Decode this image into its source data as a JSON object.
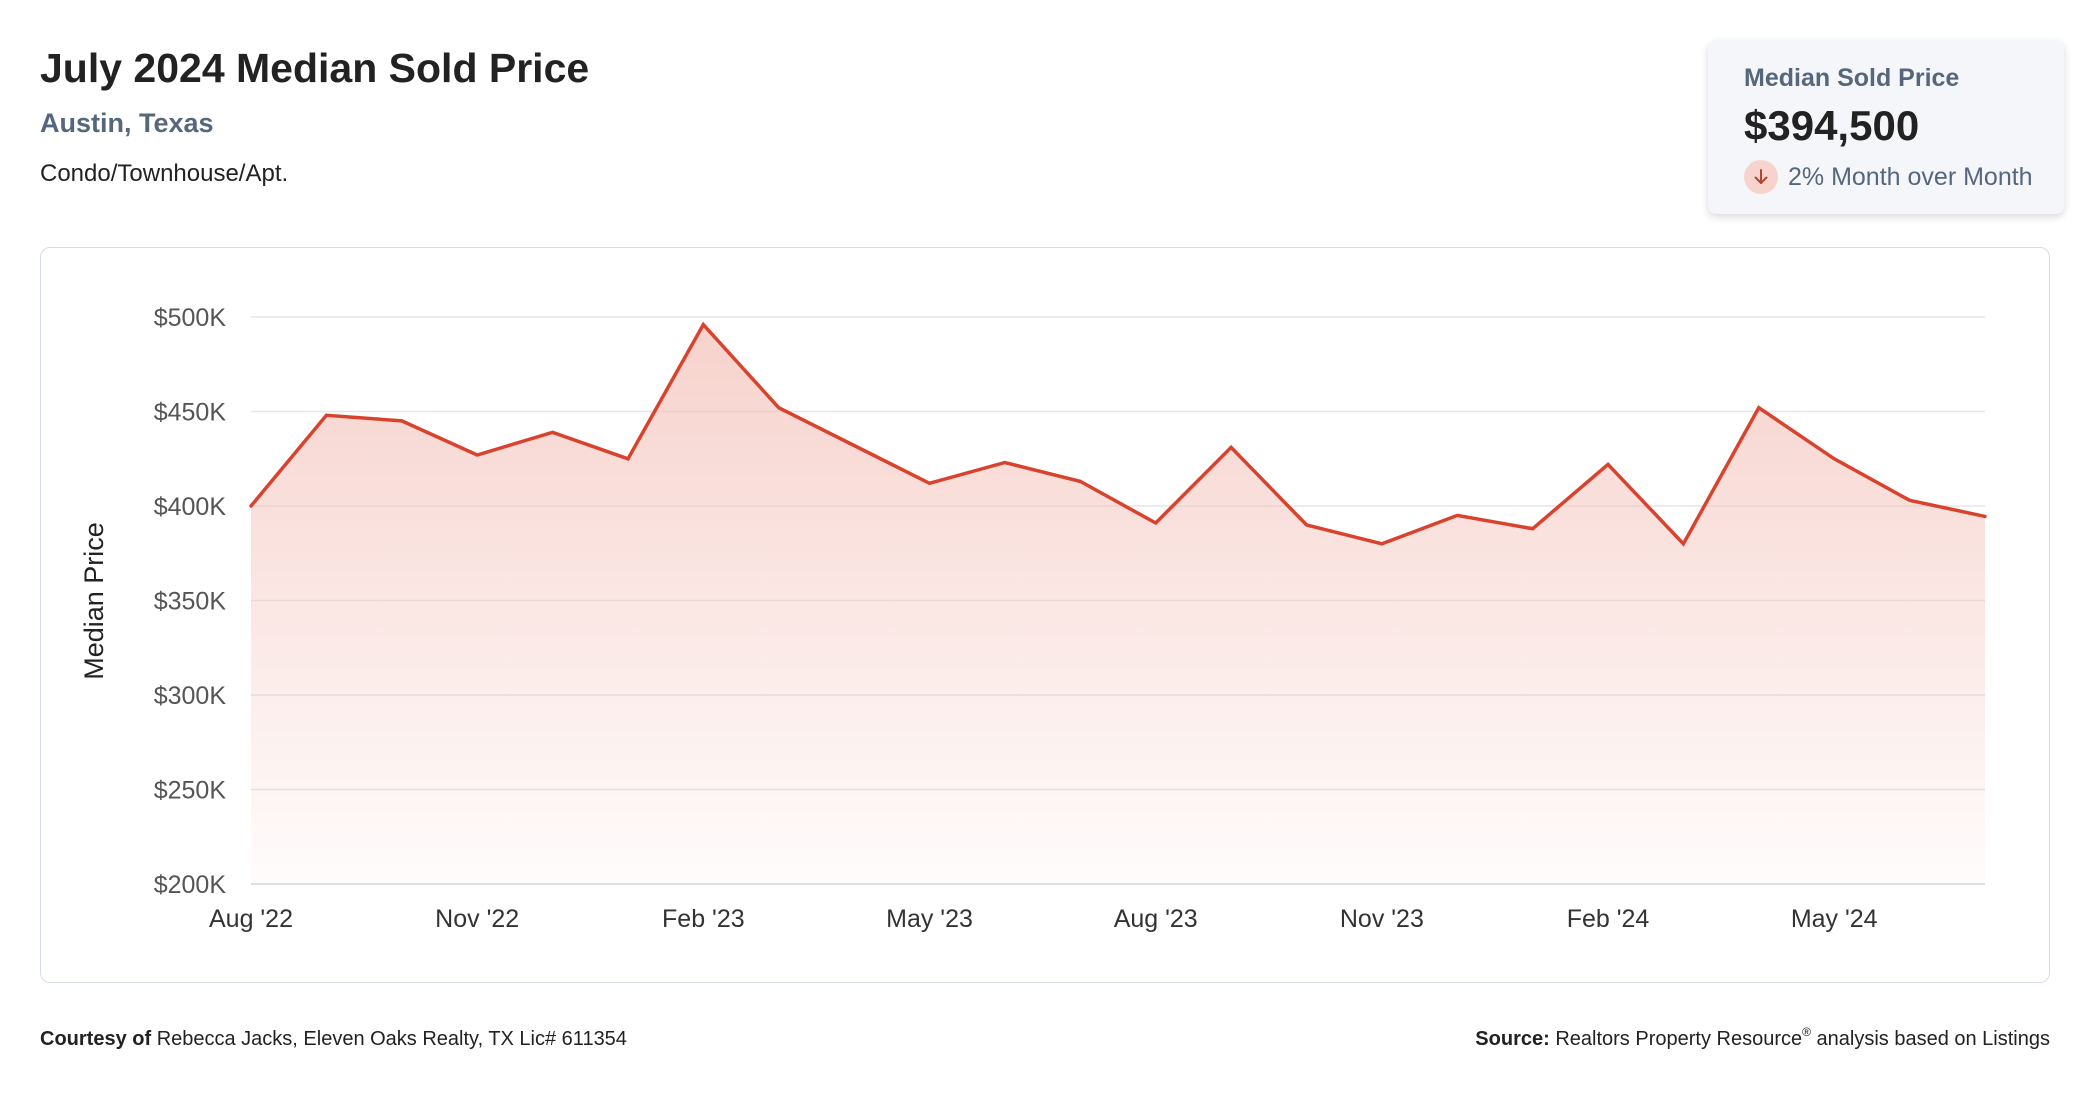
{
  "header": {
    "title": "July 2024 Median Sold Price",
    "location": "Austin, Texas",
    "property_type": "Condo/Townhouse/Apt."
  },
  "kpi": {
    "label": "Median Sold Price",
    "value": "$394,500",
    "change_text": "2% Month over Month",
    "change_direction": "down",
    "icon": "arrow-down-icon"
  },
  "footer": {
    "courtesy_label": "Courtesy of",
    "courtesy_text": "Rebecca Jacks, Eleven Oaks Realty, TX Lic# 611354",
    "source_label": "Source:",
    "source_text_1": "Realtors Property Resource",
    "source_mark": "®",
    "source_text_2": " analysis based on Listings"
  },
  "colors": {
    "line": "#d9432e",
    "fill": "#f4c3bb",
    "grid": "#e6e6e6",
    "accent_text": "#56677d"
  },
  "chart_data": {
    "type": "area",
    "ylabel": "Median Price",
    "ylim": [
      200000,
      500000
    ],
    "y_ticks": [
      500000,
      450000,
      400000,
      350000,
      300000,
      250000,
      200000
    ],
    "y_tick_labels": [
      "$500K",
      "$450K",
      "$400K",
      "$350K",
      "$300K",
      "$250K",
      "$200K"
    ],
    "x": [
      "Aug '22",
      "Sep '22",
      "Oct '22",
      "Nov '22",
      "Dec '22",
      "Jan '23",
      "Feb '23",
      "Mar '23",
      "Apr '23",
      "May '23",
      "Jun '23",
      "Jul '23",
      "Aug '23",
      "Sep '23",
      "Oct '23",
      "Nov '23",
      "Dec '23",
      "Jan '24",
      "Feb '24",
      "Mar '24",
      "Apr '24",
      "May '24",
      "Jun '24",
      "Jul '24"
    ],
    "x_tick_labels": [
      "Aug '22",
      "Nov '22",
      "Feb '23",
      "May '23",
      "Aug '23",
      "Nov '23",
      "Feb '24",
      "May '24"
    ],
    "x_tick_indices": [
      0,
      3,
      6,
      9,
      12,
      15,
      18,
      21
    ],
    "series": [
      {
        "values": [
          400000,
          448000,
          445000,
          427000,
          439000,
          425000,
          496000,
          452000,
          432000,
          412000,
          423000,
          413000,
          391000,
          431000,
          390000,
          380000,
          395000,
          388000,
          422000,
          380000,
          452000,
          425000,
          403000,
          394500
        ]
      }
    ],
    "grid": true,
    "legend": "none"
  }
}
